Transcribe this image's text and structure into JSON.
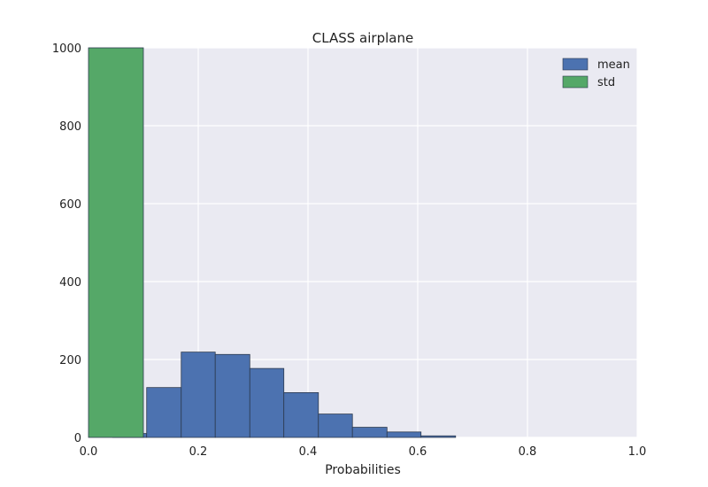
{
  "chart_data": {
    "type": "bar",
    "title": "CLASS airplane",
    "xlabel": "Probabilities",
    "ylabel": "",
    "xlim": [
      0.0,
      1.0
    ],
    "ylim": [
      0,
      1000
    ],
    "xticks": [
      "0.0",
      "0.2",
      "0.4",
      "0.6",
      "0.8",
      "1.0"
    ],
    "yticks": [
      "0",
      "200",
      "400",
      "600",
      "800",
      "1000"
    ],
    "grid": true,
    "legend_position": "top-right",
    "series": [
      {
        "name": "mean",
        "color": "#4c72b0",
        "bins": [
          {
            "x0": 0.044,
            "x1": 0.106,
            "value": 10
          },
          {
            "x0": 0.106,
            "x1": 0.169,
            "value": 128
          },
          {
            "x0": 0.169,
            "x1": 0.231,
            "value": 219
          },
          {
            "x0": 0.231,
            "x1": 0.294,
            "value": 213
          },
          {
            "x0": 0.294,
            "x1": 0.356,
            "value": 177
          },
          {
            "x0": 0.356,
            "x1": 0.419,
            "value": 115
          },
          {
            "x0": 0.419,
            "x1": 0.481,
            "value": 60
          },
          {
            "x0": 0.481,
            "x1": 0.544,
            "value": 26
          },
          {
            "x0": 0.544,
            "x1": 0.606,
            "value": 14
          },
          {
            "x0": 0.606,
            "x1": 0.669,
            "value": 4
          }
        ]
      },
      {
        "name": "std",
        "color": "#55a868",
        "bins": [
          {
            "x0": 0.0,
            "x1": 0.1,
            "value": 1000
          }
        ]
      }
    ]
  }
}
